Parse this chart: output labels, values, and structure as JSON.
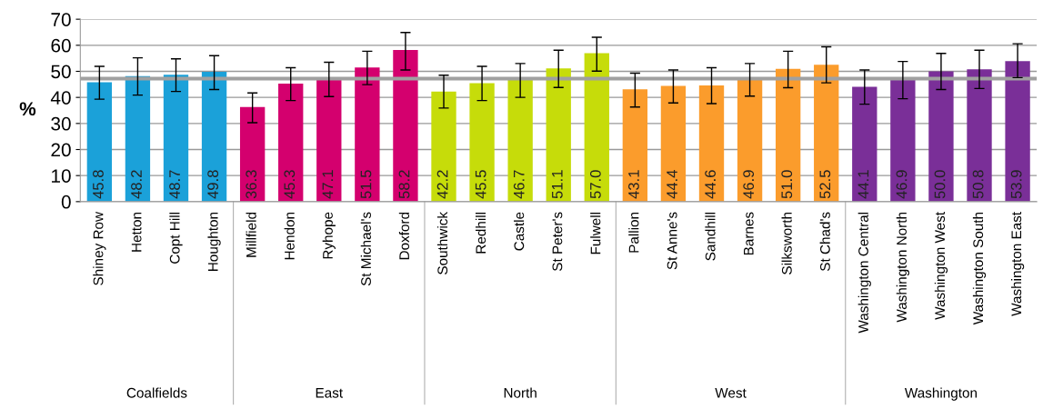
{
  "chart_data": {
    "type": "bar",
    "ylabel": "%",
    "categories": [
      "Shiney Row",
      "Hetton",
      "Copt Hill",
      "Houghton",
      "Millfield",
      "Hendon",
      "Ryhope",
      "St Michael's",
      "Doxford",
      "Southwick",
      "Redhill",
      "Castle",
      "St Peter's",
      "Fulwell",
      "Pallion",
      "St Anne's",
      "Sandhill",
      "Barnes",
      "Silksworth",
      "St Chad's",
      "Washington Central",
      "Washington North",
      "Washington West",
      "Washington South",
      "Washington East"
    ],
    "series": [
      {
        "color": "#1ba1d9",
        "values": [
          45.8,
          48.2,
          48.7,
          49.8,
          null,
          null,
          null,
          null,
          null,
          null,
          null,
          null,
          null,
          null,
          null,
          null,
          null,
          null,
          null,
          null,
          null,
          null,
          null,
          null,
          null
        ],
        "value_labels": [
          "45.8",
          "48.2",
          "48.7",
          "49.8",
          null,
          null,
          null,
          null,
          null,
          null,
          null,
          null,
          null,
          null,
          null,
          null,
          null,
          null,
          null,
          null,
          null,
          null,
          null,
          null,
          null
        ],
        "errors": [
          [
            39.3,
            51.9
          ],
          [
            40.9,
            55.2
          ],
          [
            42.3,
            54.8
          ],
          [
            43.0,
            56.0
          ],
          null,
          null,
          null,
          null,
          null,
          null,
          null,
          null,
          null,
          null,
          null,
          null,
          null,
          null,
          null,
          null,
          null,
          null,
          null,
          null,
          null
        ]
      },
      {
        "color": "#d4006e",
        "values": [
          null,
          null,
          null,
          null,
          36.3,
          45.3,
          47.1,
          51.5,
          58.2,
          null,
          null,
          null,
          null,
          null,
          null,
          null,
          null,
          null,
          null,
          null,
          null,
          null,
          null,
          null,
          null
        ],
        "value_labels": [
          null,
          null,
          null,
          null,
          "36.3",
          "45.3",
          "47.1",
          "51.5",
          "58.2",
          null,
          null,
          null,
          null,
          null,
          null,
          null,
          null,
          null,
          null,
          null,
          null,
          null,
          null,
          null,
          null
        ],
        "errors": [
          null,
          null,
          null,
          null,
          [
            30.3,
            41.7
          ],
          [
            38.8,
            51.4
          ],
          [
            40.3,
            53.5
          ],
          [
            44.9,
            57.7
          ],
          [
            50.5,
            64.9
          ],
          null,
          null,
          null,
          null,
          null,
          null,
          null,
          null,
          null,
          null,
          null,
          null,
          null,
          null,
          null,
          null
        ]
      },
      {
        "color": "#c6dc0a",
        "values": [
          null,
          null,
          null,
          null,
          null,
          null,
          null,
          null,
          null,
          42.2,
          45.5,
          46.7,
          51.1,
          57.0,
          null,
          null,
          null,
          null,
          null,
          null,
          null,
          null,
          null,
          null,
          null
        ],
        "value_labels": [
          null,
          null,
          null,
          null,
          null,
          null,
          null,
          null,
          null,
          "42.2",
          "45.5",
          "46.7",
          "51.1",
          "57.0",
          null,
          null,
          null,
          null,
          null,
          null,
          null,
          null,
          null,
          null,
          null
        ],
        "errors": [
          null,
          null,
          null,
          null,
          null,
          null,
          null,
          null,
          null,
          [
            35.9,
            48.5
          ],
          [
            38.8,
            51.9
          ],
          [
            40.0,
            53.0
          ],
          [
            43.8,
            58.1
          ],
          [
            50.1,
            63.1
          ],
          null,
          null,
          null,
          null,
          null,
          null,
          null,
          null,
          null,
          null,
          null
        ]
      },
      {
        "color": "#fb9c2c",
        "values": [
          null,
          null,
          null,
          null,
          null,
          null,
          null,
          null,
          null,
          null,
          null,
          null,
          null,
          null,
          43.1,
          44.4,
          44.6,
          46.9,
          51.0,
          52.5,
          null,
          null,
          null,
          null,
          null
        ],
        "value_labels": [
          null,
          null,
          null,
          null,
          null,
          null,
          null,
          null,
          null,
          null,
          null,
          null,
          null,
          null,
          "43.1",
          "44.4",
          "44.6",
          "46.9",
          "51.0",
          "52.5",
          null,
          null,
          null,
          null,
          null
        ],
        "errors": [
          null,
          null,
          null,
          null,
          null,
          null,
          null,
          null,
          null,
          null,
          null,
          null,
          null,
          null,
          [
            36.3,
            49.3
          ],
          [
            37.9,
            50.5
          ],
          [
            37.6,
            51.4
          ],
          [
            40.5,
            53.0
          ],
          [
            43.7,
            57.7
          ],
          [
            45.6,
            59.4
          ],
          null,
          null,
          null,
          null,
          null
        ]
      },
      {
        "color": "#7a2f98",
        "values": [
          null,
          null,
          null,
          null,
          null,
          null,
          null,
          null,
          null,
          null,
          null,
          null,
          null,
          null,
          null,
          null,
          null,
          null,
          null,
          null,
          44.1,
          46.9,
          50.0,
          50.8,
          53.9
        ],
        "value_labels": [
          null,
          null,
          null,
          null,
          null,
          null,
          null,
          null,
          null,
          null,
          null,
          null,
          null,
          null,
          null,
          null,
          null,
          null,
          null,
          null,
          "44.1",
          "46.9",
          "50.0",
          "50.8",
          "53.9"
        ],
        "errors": [
          null,
          null,
          null,
          null,
          null,
          null,
          null,
          null,
          null,
          null,
          null,
          null,
          null,
          null,
          null,
          null,
          null,
          null,
          null,
          null,
          [
            37.4,
            50.5
          ],
          [
            39.5,
            53.8
          ],
          [
            43.0,
            56.9
          ],
          [
            43.4,
            58.1
          ],
          [
            47.6,
            60.6
          ]
        ]
      }
    ],
    "ylim": [
      0,
      70
    ],
    "yticks": [
      0,
      10,
      20,
      30,
      40,
      50,
      60,
      70
    ],
    "grid": "y",
    "legend": false,
    "annotations": [
      "Coalfields",
      "East",
      "North",
      "West",
      "Washington"
    ],
    "ref_lines": [
      {
        "axis": "y",
        "value": 47.2,
        "color": "#a0a0a0"
      }
    ]
  }
}
